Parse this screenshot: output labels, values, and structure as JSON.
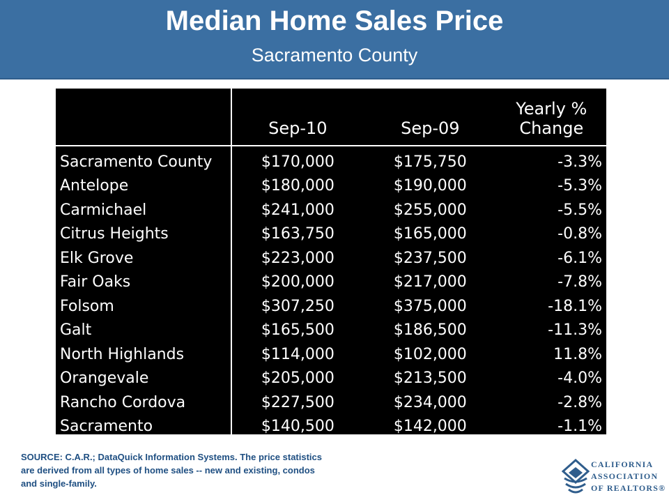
{
  "header": {
    "title": "Median Home Sales Price",
    "subtitle": "Sacramento County"
  },
  "table": {
    "columns": [
      "",
      "Sep-10",
      "Sep-09",
      "Yearly %\nChange"
    ],
    "rows": [
      {
        "name": "Sacramento County",
        "sep10": "$170,000",
        "sep09": "$175,750",
        "change": "-3.3%"
      },
      {
        "name": "Antelope",
        "sep10": "$180,000",
        "sep09": "$190,000",
        "change": "-5.3%"
      },
      {
        "name": "Carmichael",
        "sep10": "$241,000",
        "sep09": "$255,000",
        "change": "-5.5%"
      },
      {
        "name": "Citrus Heights",
        "sep10": "$163,750",
        "sep09": "$165,000",
        "change": "-0.8%"
      },
      {
        "name": "Elk Grove",
        "sep10": "$223,000",
        "sep09": "$237,500",
        "change": "-6.1%"
      },
      {
        "name": "Fair Oaks",
        "sep10": "$200,000",
        "sep09": "$217,000",
        "change": "-7.8%"
      },
      {
        "name": "Folsom",
        "sep10": "$307,250",
        "sep09": "$375,000",
        "change": "-18.1%"
      },
      {
        "name": "Galt",
        "sep10": "$165,500",
        "sep09": "$186,500",
        "change": "-11.3%"
      },
      {
        "name": "North Highlands",
        "sep10": "$114,000",
        "sep09": "$102,000",
        "change": "11.8%"
      },
      {
        "name": "Orangevale",
        "sep10": "$205,000",
        "sep09": "$213,500",
        "change": "-4.0%"
      },
      {
        "name": "Rancho Cordova",
        "sep10": "$227,500",
        "sep09": "$234,000",
        "change": "-2.8%"
      },
      {
        "name": "Sacramento",
        "sep10": "$140,500",
        "sep09": "$142,000",
        "change": "-1.1%"
      }
    ]
  },
  "source": "SOURCE: C.A.R.; DataQuick Information Systems. The price statistics are derived from all types of home sales -- new and existing, condos and single-family.",
  "logo": {
    "line1": "CALIFORNIA",
    "line2": "ASSOCIATION",
    "line3": "OF REALTORS®"
  },
  "colors": {
    "header_bg": "#3b6fa2",
    "table_bg": "#000000",
    "table_text": "#ffffff",
    "source_text": "#1f4f82"
  }
}
